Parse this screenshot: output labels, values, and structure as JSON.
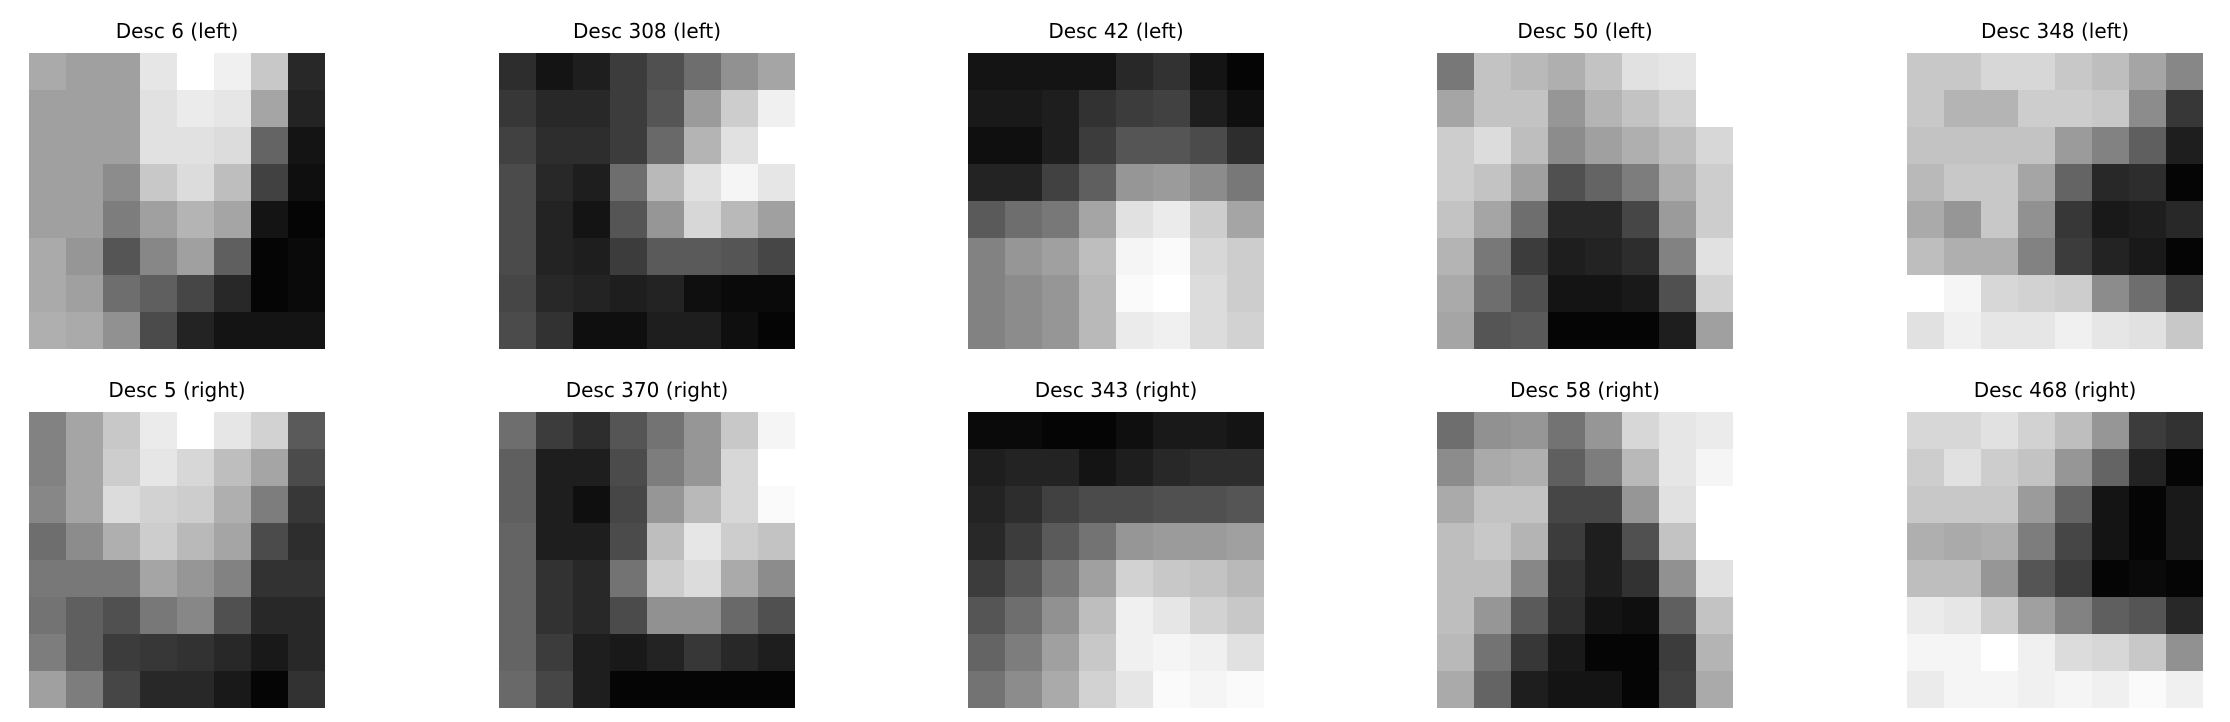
{
  "chart_data": [
    {
      "type": "heatmap",
      "title": "Desc 6 (left)",
      "colormap": "gray",
      "values": [
        [
          170,
          160,
          160,
          230,
          255,
          240,
          200,
          40
        ],
        [
          160,
          160,
          160,
          225,
          235,
          230,
          165,
          35
        ],
        [
          160,
          160,
          160,
          225,
          225,
          220,
          100,
          20
        ],
        [
          160,
          160,
          140,
          200,
          220,
          190,
          65,
          15
        ],
        [
          160,
          160,
          125,
          160,
          180,
          165,
          20,
          5
        ],
        [
          170,
          150,
          85,
          135,
          160,
          95,
          5,
          10
        ],
        [
          170,
          160,
          110,
          95,
          70,
          40,
          5,
          10
        ],
        [
          175,
          170,
          145,
          75,
          35,
          20,
          20,
          20
        ]
      ]
    },
    {
      "type": "heatmap",
      "title": "Desc 308 (left)",
      "colormap": "gray",
      "values": [
        [
          45,
          20,
          30,
          60,
          80,
          110,
          145,
          165
        ],
        [
          55,
          40,
          40,
          60,
          85,
          155,
          205,
          240
        ],
        [
          65,
          45,
          45,
          60,
          105,
          180,
          225,
          255
        ],
        [
          75,
          40,
          30,
          110,
          185,
          225,
          245,
          230
        ],
        [
          75,
          35,
          20,
          85,
          150,
          215,
          185,
          160
        ],
        [
          75,
          35,
          30,
          60,
          90,
          90,
          85,
          70
        ],
        [
          70,
          40,
          35,
          30,
          35,
          15,
          10,
          10
        ],
        [
          75,
          50,
          15,
          15,
          30,
          30,
          15,
          5
        ]
      ]
    },
    {
      "type": "heatmap",
      "title": "Desc 42 (left)",
      "colormap": "gray",
      "values": [
        [
          20,
          20,
          20,
          20,
          40,
          50,
          20,
          5
        ],
        [
          25,
          25,
          30,
          50,
          60,
          65,
          30,
          15
        ],
        [
          15,
          15,
          30,
          60,
          85,
          85,
          75,
          45
        ],
        [
          35,
          35,
          65,
          95,
          150,
          155,
          140,
          120
        ],
        [
          90,
          110,
          120,
          165,
          225,
          235,
          205,
          165
        ],
        [
          130,
          150,
          160,
          190,
          245,
          250,
          215,
          205
        ],
        [
          130,
          140,
          150,
          185,
          250,
          255,
          220,
          205
        ],
        [
          130,
          140,
          150,
          185,
          235,
          240,
          220,
          210
        ]
      ]
    },
    {
      "type": "heatmap",
      "title": "Desc 50 (left)",
      "colormap": "gray",
      "values": [
        [
          120,
          195,
          185,
          175,
          195,
          225,
          230,
          255
        ],
        [
          165,
          195,
          195,
          150,
          180,
          195,
          210,
          255
        ],
        [
          205,
          220,
          190,
          140,
          160,
          175,
          190,
          215
        ],
        [
          205,
          195,
          160,
          80,
          100,
          125,
          175,
          205
        ],
        [
          195,
          165,
          110,
          40,
          40,
          70,
          155,
          205
        ],
        [
          180,
          120,
          60,
          30,
          35,
          45,
          130,
          225
        ],
        [
          170,
          110,
          80,
          20,
          20,
          25,
          80,
          210
        ],
        [
          165,
          85,
          90,
          5,
          5,
          5,
          30,
          160
        ]
      ]
    },
    {
      "type": "heatmap",
      "title": "Desc 348 (left)",
      "colormap": "gray",
      "values": [
        [
          200,
          200,
          215,
          215,
          200,
          190,
          165,
          135
        ],
        [
          200,
          180,
          180,
          205,
          205,
          200,
          140,
          55
        ],
        [
          195,
          195,
          195,
          195,
          155,
          130,
          95,
          30
        ],
        [
          185,
          200,
          200,
          165,
          100,
          40,
          45,
          5
        ],
        [
          170,
          150,
          200,
          145,
          55,
          25,
          30,
          40
        ],
        [
          190,
          175,
          175,
          130,
          60,
          35,
          25,
          5
        ],
        [
          255,
          245,
          215,
          210,
          205,
          140,
          110,
          60
        ],
        [
          225,
          240,
          230,
          230,
          240,
          230,
          225,
          200
        ]
      ]
    },
    {
      "type": "heatmap",
      "title": "Desc 5 (right)",
      "colormap": "gray",
      "values": [
        [
          130,
          165,
          200,
          235,
          255,
          230,
          210,
          90
        ],
        [
          130,
          165,
          205,
          230,
          215,
          190,
          165,
          75
        ],
        [
          135,
          165,
          220,
          210,
          205,
          175,
          125,
          55
        ],
        [
          110,
          140,
          175,
          205,
          185,
          165,
          75,
          45
        ],
        [
          120,
          120,
          120,
          165,
          150,
          130,
          50,
          50
        ],
        [
          115,
          95,
          80,
          120,
          135,
          80,
          40,
          40
        ],
        [
          125,
          95,
          60,
          55,
          50,
          40,
          25,
          40
        ],
        [
          160,
          125,
          70,
          40,
          40,
          25,
          5,
          50
        ]
      ]
    },
    {
      "type": "heatmap",
      "title": "Desc 370 (right)",
      "colormap": "gray",
      "values": [
        [
          110,
          60,
          45,
          85,
          115,
          150,
          200,
          245
        ],
        [
          95,
          30,
          30,
          75,
          125,
          150,
          215,
          255
        ],
        [
          95,
          30,
          15,
          70,
          150,
          185,
          215,
          250
        ],
        [
          100,
          30,
          30,
          75,
          190,
          230,
          205,
          195
        ],
        [
          100,
          50,
          40,
          115,
          205,
          220,
          170,
          140
        ],
        [
          100,
          50,
          40,
          75,
          145,
          145,
          105,
          80
        ],
        [
          100,
          60,
          30,
          25,
          35,
          55,
          40,
          30
        ],
        [
          105,
          70,
          30,
          5,
          5,
          5,
          5,
          5
        ]
      ]
    },
    {
      "type": "heatmap",
      "title": "Desc 343 (right)",
      "colormap": "gray",
      "values": [
        [
          10,
          10,
          5,
          5,
          15,
          25,
          25,
          20
        ],
        [
          30,
          35,
          35,
          20,
          30,
          40,
          45,
          45
        ],
        [
          35,
          45,
          65,
          75,
          75,
          80,
          80,
          85
        ],
        [
          40,
          60,
          90,
          115,
          150,
          155,
          155,
          160
        ],
        [
          60,
          85,
          120,
          160,
          210,
          200,
          195,
          185
        ],
        [
          85,
          110,
          145,
          190,
          240,
          230,
          210,
          200
        ],
        [
          100,
          125,
          160,
          200,
          240,
          245,
          240,
          225
        ],
        [
          115,
          140,
          170,
          210,
          230,
          250,
          245,
          250
        ]
      ]
    },
    {
      "type": "heatmap",
      "title": "Desc 58 (right)",
      "colormap": "gray",
      "values": [
        [
          110,
          145,
          150,
          115,
          150,
          215,
          230,
          235
        ],
        [
          140,
          170,
          175,
          95,
          125,
          185,
          230,
          245
        ],
        [
          170,
          195,
          195,
          70,
          70,
          150,
          225,
          255
        ],
        [
          190,
          200,
          180,
          60,
          30,
          80,
          195,
          255
        ],
        [
          190,
          190,
          135,
          50,
          30,
          50,
          145,
          225
        ],
        [
          190,
          150,
          90,
          45,
          20,
          15,
          95,
          195
        ],
        [
          185,
          115,
          55,
          25,
          5,
          5,
          60,
          180
        ],
        [
          170,
          100,
          30,
          20,
          20,
          5,
          65,
          170
        ]
      ]
    },
    {
      "type": "heatmap",
      "title": "Desc 468 (right)",
      "colormap": "gray",
      "values": [
        [
          215,
          215,
          225,
          210,
          190,
          150,
          60,
          50
        ],
        [
          205,
          225,
          205,
          195,
          150,
          100,
          35,
          5
        ],
        [
          200,
          200,
          200,
          155,
          100,
          20,
          5,
          25
        ],
        [
          175,
          170,
          175,
          125,
          70,
          20,
          5,
          25
        ],
        [
          190,
          190,
          150,
          85,
          60,
          5,
          10,
          5
        ],
        [
          235,
          230,
          205,
          160,
          130,
          95,
          85,
          40
        ],
        [
          245,
          245,
          255,
          240,
          220,
          215,
          200,
          145
        ],
        [
          235,
          245,
          245,
          240,
          245,
          240,
          250,
          240
        ]
      ]
    }
  ]
}
